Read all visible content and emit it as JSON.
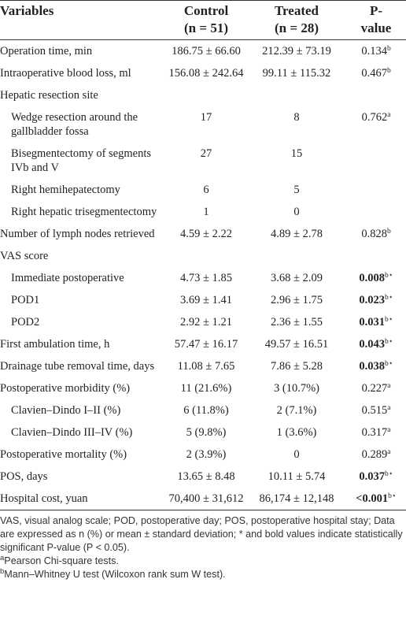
{
  "table": {
    "header": [
      {
        "lines": [
          "Variables"
        ]
      },
      {
        "lines": [
          "Control",
          "(n = 51)"
        ]
      },
      {
        "lines": [
          "Treated",
          "(n = 28)"
        ]
      },
      {
        "lines": [
          "P-",
          "value"
        ]
      }
    ],
    "rows": [
      {
        "variable": "Operation time, min",
        "control": "186.75 ± 66.60",
        "treated": "212.39 ± 73.19",
        "p": {
          "text": "0.134",
          "sup": "b"
        }
      },
      {
        "variable": "Intraoperative blood loss, ml",
        "control": "156.08 ± 242.64",
        "treated": "99.11 ± 115.32",
        "p": {
          "text": "0.467",
          "sup": "b"
        }
      },
      {
        "variable": "Hepatic resection site"
      },
      {
        "variable": "Wedge resection around the gallbladder fossa",
        "indent": true,
        "control": "17",
        "treated": "8",
        "p": {
          "text": "0.762",
          "sup": "a"
        }
      },
      {
        "variable": "Bisegmentectomy of segments IVb and V",
        "indent": true,
        "control": "27",
        "treated": "15"
      },
      {
        "variable": "Right hemihepatectomy",
        "indent": true,
        "control": "6",
        "treated": "5"
      },
      {
        "variable": "Right hepatic trisegmentectomy",
        "indent": true,
        "control": "1",
        "treated": "0"
      },
      {
        "variable": "Number of lymph nodes retrieved",
        "control": "4.59 ± 2.22",
        "treated": "4.89 ± 2.78",
        "p": {
          "text": "0.828",
          "sup": "b"
        }
      },
      {
        "variable": "VAS score"
      },
      {
        "variable": "Immediate postoperative",
        "indent": true,
        "control": "4.73 ± 1.85",
        "treated": "3.68 ± 2.09",
        "p": {
          "text": "0.008",
          "sup": "b⋆",
          "bold": true
        }
      },
      {
        "variable": "POD1",
        "indent": true,
        "control": "3.69 ± 1.41",
        "treated": "2.96 ± 1.75",
        "p": {
          "text": "0.023",
          "sup": "b⋆",
          "bold": true
        }
      },
      {
        "variable": "POD2",
        "indent": true,
        "control": "2.92 ± 1.21",
        "treated": "2.36 ± 1.55",
        "p": {
          "text": "0.031",
          "sup": "b⋆",
          "bold": true
        }
      },
      {
        "variable": "First ambulation time, h",
        "control": "57.47 ± 16.17",
        "treated": "49.57 ± 16.51",
        "p": {
          "text": "0.043",
          "sup": "b⋆",
          "bold": true
        }
      },
      {
        "variable": "Drainage tube removal time, days",
        "control": "11.08 ± 7.65",
        "treated": "7.86 ± 5.28",
        "p": {
          "text": "0.038",
          "sup": "b⋆",
          "bold": true
        }
      },
      {
        "variable": "Postoperative morbidity (%)",
        "control": "11 (21.6%)",
        "treated": "3 (10.7%)",
        "p": {
          "text": "0.227",
          "sup": "a"
        }
      },
      {
        "variable": "Clavien–Dindo I–II (%)",
        "indent": true,
        "control": "6 (11.8%)",
        "treated": "2 (7.1%)",
        "p": {
          "text": "0.515",
          "sup": "a"
        }
      },
      {
        "variable": "Clavien–Dindo III–IV (%)",
        "indent": true,
        "control": "5 (9.8%)",
        "treated": "1 (3.6%)",
        "p": {
          "text": "0.317",
          "sup": "a"
        }
      },
      {
        "variable": "Postoperative mortality (%)",
        "control": "2 (3.9%)",
        "treated": "0",
        "p": {
          "text": "0.289",
          "sup": "a"
        }
      },
      {
        "variable": "POS, days",
        "control": "13.65 ± 8.48",
        "treated": "10.11 ± 5.74",
        "p": {
          "text": "0.037",
          "sup": "b⋆",
          "bold": true
        }
      },
      {
        "variable": "Hospital cost, yuan",
        "control": "70,400 ± 31,612",
        "treated": "86,174 ± 12,148",
        "p": {
          "text": "<0.001",
          "sup": "b⋆",
          "bold": true
        }
      }
    ],
    "footnotes": [
      {
        "text": "VAS, visual analog scale; POD, postoperative day; POS, postoperative hospital stay; Data are expressed as n (%) or mean ± standard deviation; * and bold values indicate statistically significant P-value (P < 0.05)."
      },
      {
        "sup": "a",
        "text": "Pearson Chi-square tests."
      },
      {
        "sup": "b",
        "text": "Mann–Whitney U test (Wilcoxon rank sum W test)."
      }
    ]
  }
}
